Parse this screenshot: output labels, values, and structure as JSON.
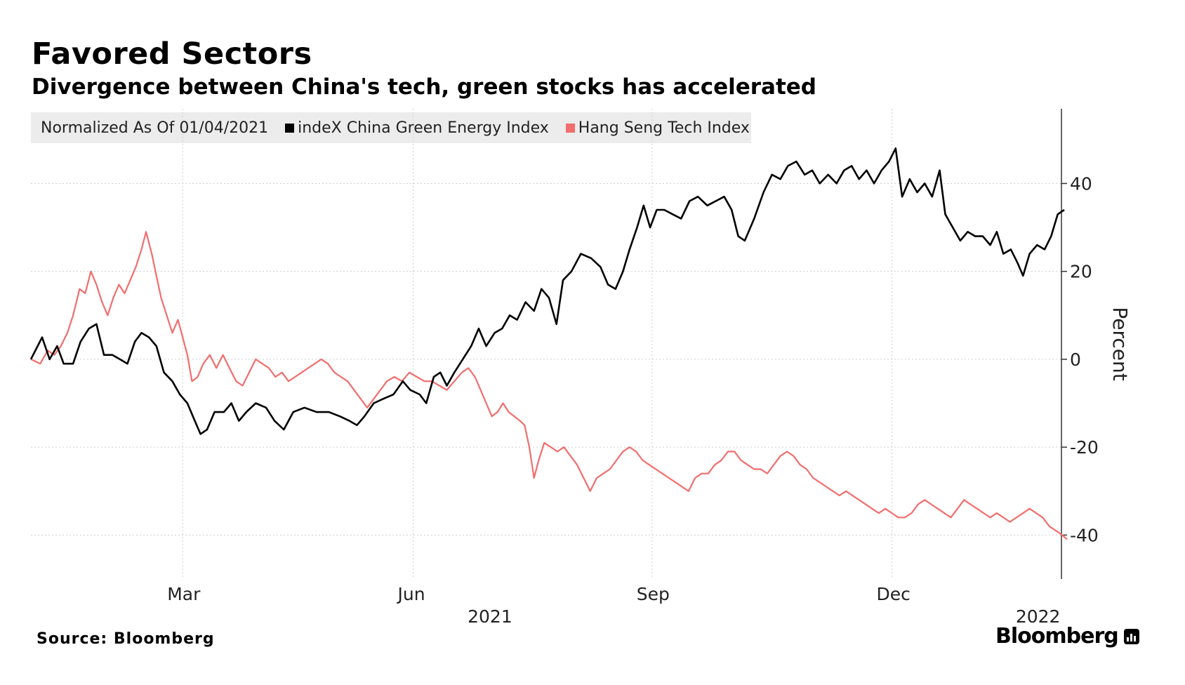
{
  "header": {
    "title": "Favored Sectors",
    "subtitle": "Divergence between China's tech, green stocks has accelerated"
  },
  "legend": {
    "note": "Normalized As Of 01/04/2021",
    "items": [
      {
        "label": "indeX China Green Energy Index",
        "color": "#000000"
      },
      {
        "label": "Hang Seng Tech Index",
        "color": "#f26d6d"
      }
    ]
  },
  "footer": {
    "source": "Source: Bloomberg",
    "brand": "Bloomberg"
  },
  "chart_data": {
    "type": "line",
    "title": "Favored Sectors",
    "subtitle": "Divergence between China's tech, green stocks has accelerated",
    "xlabel": "",
    "ylabel": "Percent",
    "xlim": [
      0,
      1.1
    ],
    "ylim": [
      -50,
      57
    ],
    "y_ticks": [
      40,
      20,
      0,
      -20,
      -40
    ],
    "x_ticks": [
      {
        "label": "Mar",
        "x": 0.162
      },
      {
        "label": "Jun",
        "x": 0.408
      },
      {
        "label": "Sep",
        "x": 0.663
      },
      {
        "label": "Dec",
        "x": 0.919
      }
    ],
    "x_year_labels": [
      {
        "label": "2021",
        "x": 0.49
      },
      {
        "label": "2022",
        "x": 1.075
      }
    ],
    "grid": true,
    "legend_position": "top-left",
    "series": [
      {
        "name": "indeX China Green Energy Index",
        "color": "#000000",
        "points": [
          [
            0.0,
            0.0
          ],
          [
            0.012,
            5.0
          ],
          [
            0.02,
            0.0
          ],
          [
            0.028,
            3.0
          ],
          [
            0.035,
            -1.0
          ],
          [
            0.045,
            -1.0
          ],
          [
            0.053,
            4.0
          ],
          [
            0.062,
            7.0
          ],
          [
            0.07,
            8.0
          ],
          [
            0.078,
            1.0
          ],
          [
            0.087,
            1.0
          ],
          [
            0.095,
            0.0
          ],
          [
            0.103,
            -1.0
          ],
          [
            0.111,
            4.0
          ],
          [
            0.118,
            6.0
          ],
          [
            0.126,
            5.0
          ],
          [
            0.134,
            3.0
          ],
          [
            0.142,
            -3.0
          ],
          [
            0.151,
            -5.0
          ],
          [
            0.159,
            -8.0
          ],
          [
            0.167,
            -10.0
          ],
          [
            0.175,
            -14.0
          ],
          [
            0.181,
            -17.0
          ],
          [
            0.188,
            -16.0
          ],
          [
            0.196,
            -12.0
          ],
          [
            0.206,
            -12.0
          ],
          [
            0.214,
            -10.0
          ],
          [
            0.222,
            -14.0
          ],
          [
            0.23,
            -12.0
          ],
          [
            0.24,
            -10.0
          ],
          [
            0.251,
            -11.0
          ],
          [
            0.26,
            -14.0
          ],
          [
            0.27,
            -16.0
          ],
          [
            0.28,
            -12.0
          ],
          [
            0.292,
            -11.0
          ],
          [
            0.305,
            -12.0
          ],
          [
            0.318,
            -12.0
          ],
          [
            0.33,
            -13.0
          ],
          [
            0.34,
            -14.0
          ],
          [
            0.348,
            -15.0
          ],
          [
            0.356,
            -13.0
          ],
          [
            0.366,
            -10.0
          ],
          [
            0.376,
            -9.0
          ],
          [
            0.387,
            -8.0
          ],
          [
            0.397,
            -5.0
          ],
          [
            0.405,
            -7.0
          ],
          [
            0.415,
            -8.0
          ],
          [
            0.422,
            -10.0
          ],
          [
            0.43,
            -4.0
          ],
          [
            0.437,
            -3.0
          ],
          [
            0.444,
            -6.0
          ],
          [
            0.452,
            -3.0
          ],
          [
            0.461,
            0.0
          ],
          [
            0.47,
            3.0
          ],
          [
            0.478,
            7.0
          ],
          [
            0.486,
            3.0
          ],
          [
            0.495,
            6.0
          ],
          [
            0.503,
            7.0
          ],
          [
            0.511,
            10.0
          ],
          [
            0.519,
            9.0
          ],
          [
            0.528,
            13.0
          ],
          [
            0.537,
            11.0
          ],
          [
            0.545,
            16.0
          ],
          [
            0.553,
            14.0
          ],
          [
            0.561,
            8.0
          ],
          [
            0.568,
            18.0
          ],
          [
            0.577,
            20.0
          ],
          [
            0.587,
            24.0
          ],
          [
            0.598,
            23.0
          ],
          [
            0.608,
            21.0
          ],
          [
            0.616,
            17.0
          ],
          [
            0.624,
            16.0
          ],
          [
            0.632,
            20.0
          ],
          [
            0.639,
            25.0
          ],
          [
            0.647,
            30.0
          ],
          [
            0.654,
            35.0
          ],
          [
            0.661,
            30.0
          ],
          [
            0.668,
            34.0
          ],
          [
            0.676,
            34.0
          ],
          [
            0.685,
            33.0
          ],
          [
            0.694,
            32.0
          ],
          [
            0.703,
            36.0
          ],
          [
            0.712,
            37.0
          ],
          [
            0.722,
            35.0
          ],
          [
            0.731,
            36.0
          ],
          [
            0.74,
            37.0
          ],
          [
            0.748,
            34.0
          ],
          [
            0.755,
            28.0
          ],
          [
            0.762,
            27.0
          ],
          [
            0.772,
            32.0
          ],
          [
            0.782,
            38.0
          ],
          [
            0.791,
            42.0
          ],
          [
            0.8,
            41.0
          ],
          [
            0.808,
            44.0
          ],
          [
            0.817,
            45.0
          ],
          [
            0.826,
            42.0
          ],
          [
            0.834,
            43.0
          ],
          [
            0.842,
            40.0
          ],
          [
            0.851,
            42.0
          ],
          [
            0.86,
            40.0
          ],
          [
            0.868,
            43.0
          ],
          [
            0.876,
            44.0
          ],
          [
            0.884,
            41.0
          ],
          [
            0.892,
            43.0
          ],
          [
            0.9,
            40.0
          ],
          [
            0.908,
            43.0
          ],
          [
            0.916,
            45.0
          ],
          [
            0.923,
            48.0
          ],
          [
            0.93,
            37.0
          ],
          [
            0.938,
            41.0
          ],
          [
            0.946,
            38.0
          ],
          [
            0.954,
            40.0
          ],
          [
            0.962,
            37.0
          ],
          [
            0.97,
            43.0
          ],
          [
            0.976,
            33.0
          ],
          [
            0.984,
            30.0
          ],
          [
            0.992,
            27.0
          ],
          [
            1.0,
            29.0
          ],
          [
            1.008,
            28.0
          ],
          [
            1.016,
            28.0
          ],
          [
            1.024,
            26.0
          ],
          [
            1.031,
            29.0
          ],
          [
            1.038,
            24.0
          ],
          [
            1.046,
            25.0
          ],
          [
            1.053,
            22.0
          ],
          [
            1.059,
            19.0
          ],
          [
            1.066,
            24.0
          ],
          [
            1.074,
            26.0
          ],
          [
            1.082,
            25.0
          ],
          [
            1.089,
            28.0
          ],
          [
            1.096,
            33.0
          ],
          [
            1.103,
            34.0
          ]
        ]
      },
      {
        "name": "Hang Seng Tech Index",
        "color": "#f26d6d",
        "points": [
          [
            0.0,
            0.0
          ],
          [
            0.01,
            -1.0
          ],
          [
            0.018,
            2.0
          ],
          [
            0.025,
            1.0
          ],
          [
            0.032,
            3.0
          ],
          [
            0.039,
            6.0
          ],
          [
            0.045,
            10.0
          ],
          [
            0.052,
            16.0
          ],
          [
            0.058,
            15.0
          ],
          [
            0.064,
            20.0
          ],
          [
            0.07,
            17.0
          ],
          [
            0.076,
            13.0
          ],
          [
            0.082,
            10.0
          ],
          [
            0.088,
            14.0
          ],
          [
            0.094,
            17.0
          ],
          [
            0.1,
            15.0
          ],
          [
            0.106,
            18.0
          ],
          [
            0.112,
            21.0
          ],
          [
            0.118,
            25.0
          ],
          [
            0.123,
            29.0
          ],
          [
            0.129,
            24.0
          ],
          [
            0.134,
            19.0
          ],
          [
            0.139,
            14.0
          ],
          [
            0.145,
            10.0
          ],
          [
            0.151,
            6.0
          ],
          [
            0.157,
            9.0
          ],
          [
            0.162,
            5.0
          ],
          [
            0.167,
            1.0
          ],
          [
            0.172,
            -5.0
          ],
          [
            0.178,
            -4.0
          ],
          [
            0.184,
            -1.0
          ],
          [
            0.191,
            1.0
          ],
          [
            0.198,
            -2.0
          ],
          [
            0.205,
            1.0
          ],
          [
            0.212,
            -2.0
          ],
          [
            0.219,
            -5.0
          ],
          [
            0.226,
            -6.0
          ],
          [
            0.233,
            -3.0
          ],
          [
            0.24,
            0.0
          ],
          [
            0.247,
            -1.0
          ],
          [
            0.254,
            -2.0
          ],
          [
            0.261,
            -4.0
          ],
          [
            0.268,
            -3.0
          ],
          [
            0.275,
            -5.0
          ],
          [
            0.282,
            -4.0
          ],
          [
            0.289,
            -3.0
          ],
          [
            0.296,
            -2.0
          ],
          [
            0.303,
            -1.0
          ],
          [
            0.31,
            0.0
          ],
          [
            0.317,
            -1.0
          ],
          [
            0.324,
            -3.0
          ],
          [
            0.331,
            -4.0
          ],
          [
            0.338,
            -5.0
          ],
          [
            0.345,
            -7.0
          ],
          [
            0.352,
            -9.0
          ],
          [
            0.359,
            -11.0
          ],
          [
            0.366,
            -9.0
          ],
          [
            0.373,
            -7.0
          ],
          [
            0.38,
            -5.0
          ],
          [
            0.388,
            -4.0
          ],
          [
            0.396,
            -5.0
          ],
          [
            0.404,
            -3.0
          ],
          [
            0.412,
            -4.0
          ],
          [
            0.42,
            -5.0
          ],
          [
            0.428,
            -5.0
          ],
          [
            0.436,
            -6.0
          ],
          [
            0.444,
            -7.0
          ],
          [
            0.452,
            -5.0
          ],
          [
            0.46,
            -3.0
          ],
          [
            0.467,
            -2.0
          ],
          [
            0.474,
            -4.0
          ],
          [
            0.48,
            -7.0
          ],
          [
            0.486,
            -10.0
          ],
          [
            0.492,
            -13.0
          ],
          [
            0.498,
            -12.0
          ],
          [
            0.504,
            -10.0
          ],
          [
            0.51,
            -12.0
          ],
          [
            0.516,
            -13.0
          ],
          [
            0.522,
            -14.0
          ],
          [
            0.527,
            -15.0
          ],
          [
            0.532,
            -20.0
          ],
          [
            0.537,
            -27.0
          ],
          [
            0.542,
            -23.0
          ],
          [
            0.548,
            -19.0
          ],
          [
            0.555,
            -20.0
          ],
          [
            0.562,
            -21.0
          ],
          [
            0.569,
            -20.0
          ],
          [
            0.576,
            -22.0
          ],
          [
            0.583,
            -24.0
          ],
          [
            0.59,
            -27.0
          ],
          [
            0.597,
            -30.0
          ],
          [
            0.604,
            -27.0
          ],
          [
            0.611,
            -26.0
          ],
          [
            0.618,
            -25.0
          ],
          [
            0.625,
            -23.0
          ],
          [
            0.632,
            -21.0
          ],
          [
            0.639,
            -20.0
          ],
          [
            0.646,
            -21.0
          ],
          [
            0.653,
            -23.0
          ],
          [
            0.66,
            -24.0
          ],
          [
            0.667,
            -25.0
          ],
          [
            0.674,
            -26.0
          ],
          [
            0.681,
            -27.0
          ],
          [
            0.688,
            -28.0
          ],
          [
            0.695,
            -29.0
          ],
          [
            0.702,
            -30.0
          ],
          [
            0.709,
            -27.0
          ],
          [
            0.716,
            -26.0
          ],
          [
            0.723,
            -26.0
          ],
          [
            0.73,
            -24.0
          ],
          [
            0.737,
            -23.0
          ],
          [
            0.744,
            -21.0
          ],
          [
            0.751,
            -21.0
          ],
          [
            0.758,
            -23.0
          ],
          [
            0.765,
            -24.0
          ],
          [
            0.772,
            -25.0
          ],
          [
            0.779,
            -25.0
          ],
          [
            0.786,
            -26.0
          ],
          [
            0.793,
            -24.0
          ],
          [
            0.8,
            -22.0
          ],
          [
            0.807,
            -21.0
          ],
          [
            0.814,
            -22.0
          ],
          [
            0.821,
            -24.0
          ],
          [
            0.828,
            -25.0
          ],
          [
            0.835,
            -27.0
          ],
          [
            0.842,
            -28.0
          ],
          [
            0.849,
            -29.0
          ],
          [
            0.856,
            -30.0
          ],
          [
            0.863,
            -31.0
          ],
          [
            0.87,
            -30.0
          ],
          [
            0.877,
            -31.0
          ],
          [
            0.884,
            -32.0
          ],
          [
            0.891,
            -33.0
          ],
          [
            0.898,
            -34.0
          ],
          [
            0.905,
            -35.0
          ],
          [
            0.912,
            -34.0
          ],
          [
            0.919,
            -35.0
          ],
          [
            0.926,
            -36.0
          ],
          [
            0.933,
            -36.0
          ],
          [
            0.94,
            -35.0
          ],
          [
            0.947,
            -33.0
          ],
          [
            0.954,
            -32.0
          ],
          [
            0.961,
            -33.0
          ],
          [
            0.968,
            -34.0
          ],
          [
            0.975,
            -35.0
          ],
          [
            0.982,
            -36.0
          ],
          [
            0.989,
            -34.0
          ],
          [
            0.996,
            -32.0
          ],
          [
            1.003,
            -33.0
          ],
          [
            1.01,
            -34.0
          ],
          [
            1.017,
            -35.0
          ],
          [
            1.024,
            -36.0
          ],
          [
            1.031,
            -35.0
          ],
          [
            1.038,
            -36.0
          ],
          [
            1.045,
            -37.0
          ],
          [
            1.052,
            -36.0
          ],
          [
            1.059,
            -35.0
          ],
          [
            1.066,
            -34.0
          ],
          [
            1.073,
            -35.0
          ],
          [
            1.08,
            -36.0
          ],
          [
            1.087,
            -38.0
          ],
          [
            1.094,
            -39.0
          ],
          [
            1.101,
            -40.0
          ],
          [
            1.106,
            -41.0
          ]
        ]
      }
    ]
  }
}
